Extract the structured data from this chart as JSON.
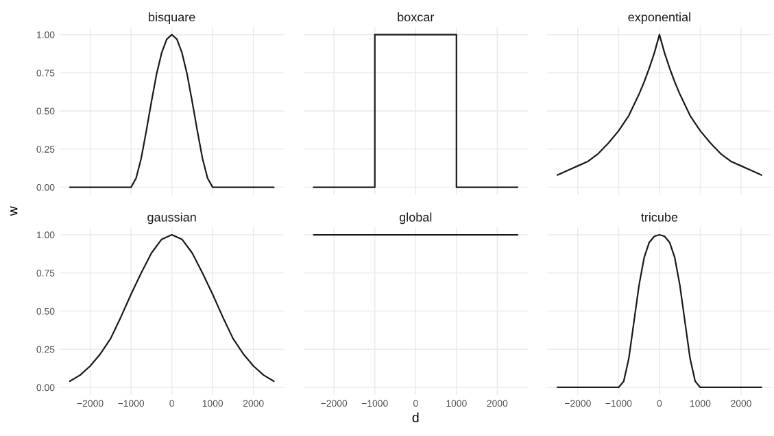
{
  "chart_data": [
    {
      "type": "line",
      "title": "bisquare",
      "ylabel": "w",
      "color": "#1a1a1a",
      "tick_labels": "y",
      "grid": true,
      "xlim": [
        -2750,
        2750
      ],
      "ylim": [
        -0.05,
        1.05
      ],
      "xticks": [
        {
          "value": -2000,
          "label": null
        },
        {
          "value": -1000,
          "label": null
        },
        {
          "value": 0,
          "label": null
        },
        {
          "value": 1000,
          "label": null
        },
        {
          "value": 2000,
          "label": null
        }
      ],
      "yticks": [
        {
          "value": 0,
          "label": "0.00"
        },
        {
          "value": 0.25,
          "label": "0.25"
        },
        {
          "value": 0.5,
          "label": "0.50"
        },
        {
          "value": 0.75,
          "label": "0.75"
        },
        {
          "value": 1,
          "label": "1.00"
        }
      ],
      "x": [
        -2500,
        -1000,
        -875,
        -750,
        -625,
        -500,
        -375,
        -250,
        -125,
        0,
        125,
        250,
        375,
        500,
        625,
        750,
        875,
        1000,
        2500
      ],
      "values": [
        0,
        0,
        0.06,
        0.19,
        0.37,
        0.56,
        0.74,
        0.88,
        0.97,
        1,
        0.97,
        0.88,
        0.74,
        0.56,
        0.37,
        0.19,
        0.06,
        0,
        0
      ]
    },
    {
      "type": "line",
      "title": "boxcar",
      "color": "#1a1a1a",
      "tick_labels": false,
      "grid": true,
      "xlim": [
        -2750,
        2750
      ],
      "ylim": [
        -0.05,
        1.05
      ],
      "xticks": [
        {
          "value": -2000,
          "label": null
        },
        {
          "value": -1000,
          "label": null
        },
        {
          "value": 0,
          "label": null
        },
        {
          "value": 1000,
          "label": null
        },
        {
          "value": 2000,
          "label": null
        }
      ],
      "yticks": [
        {
          "value": 0,
          "label": null
        },
        {
          "value": 0.25,
          "label": null
        },
        {
          "value": 0.5,
          "label": null
        },
        {
          "value": 0.75,
          "label": null
        },
        {
          "value": 1,
          "label": null
        }
      ],
      "x": [
        -2500,
        -1000,
        -1000,
        1000,
        1000,
        2500
      ],
      "values": [
        0,
        0,
        1,
        1,
        0,
        0
      ]
    },
    {
      "type": "line",
      "title": "exponential",
      "color": "#1a1a1a",
      "tick_labels": false,
      "grid": true,
      "xlim": [
        -2750,
        2750
      ],
      "ylim": [
        -0.05,
        1.05
      ],
      "xticks": [
        {
          "value": -2000,
          "label": null
        },
        {
          "value": -1000,
          "label": null
        },
        {
          "value": 0,
          "label": null
        },
        {
          "value": 1000,
          "label": null
        },
        {
          "value": 2000,
          "label": null
        }
      ],
      "yticks": [
        {
          "value": 0,
          "label": null
        },
        {
          "value": 0.25,
          "label": null
        },
        {
          "value": 0.5,
          "label": null
        },
        {
          "value": 0.75,
          "label": null
        },
        {
          "value": 1,
          "label": null
        }
      ],
      "x": [
        -2500,
        -2250,
        -2000,
        -1750,
        -1500,
        -1250,
        -1000,
        -750,
        -500,
        -375,
        -250,
        -125,
        0,
        125,
        250,
        375,
        500,
        750,
        1000,
        1250,
        1500,
        1750,
        2000,
        2250,
        2500
      ],
      "values": [
        0.08,
        0.11,
        0.14,
        0.17,
        0.22,
        0.29,
        0.37,
        0.47,
        0.61,
        0.69,
        0.78,
        0.88,
        1,
        0.88,
        0.78,
        0.69,
        0.61,
        0.47,
        0.37,
        0.29,
        0.22,
        0.17,
        0.14,
        0.11,
        0.08
      ]
    },
    {
      "type": "line",
      "title": "gaussian",
      "color": "#1a1a1a",
      "grid": true,
      "xlim": [
        -2750,
        2750
      ],
      "ylim": [
        -0.05,
        1.05
      ],
      "xticks": [
        {
          "value": -2000,
          "label": "−2000"
        },
        {
          "value": -1000,
          "label": "−1000"
        },
        0,
        1000,
        2000
      ],
      "yticks": [
        {
          "value": 0,
          "label": "0.00"
        },
        {
          "value": 0.25,
          "label": "0.25"
        },
        {
          "value": 0.5,
          "label": "0.50"
        },
        {
          "value": 0.75,
          "label": "0.75"
        },
        {
          "value": 1,
          "label": "1.00"
        }
      ],
      "x": [
        -2500,
        -2250,
        -2000,
        -1750,
        -1500,
        -1250,
        -1000,
        -750,
        -500,
        -250,
        0,
        250,
        500,
        750,
        1000,
        1250,
        1500,
        1750,
        2000,
        2250,
        2500
      ],
      "values": [
        0.04,
        0.08,
        0.14,
        0.22,
        0.32,
        0.46,
        0.61,
        0.75,
        0.88,
        0.97,
        1,
        0.97,
        0.88,
        0.75,
        0.61,
        0.46,
        0.32,
        0.22,
        0.14,
        0.08,
        0.04
      ]
    },
    {
      "type": "line",
      "title": "global",
      "xlabel": "d",
      "color": "#1a1a1a",
      "tick_labels": "x",
      "grid": true,
      "xlim": [
        -2750,
        2750
      ],
      "ylim": [
        -0.05,
        1.05
      ],
      "xticks": [
        {
          "value": -2000,
          "label": "−2000"
        },
        {
          "value": -1000,
          "label": "−1000"
        },
        0,
        1000,
        2000
      ],
      "yticks": [
        {
          "value": 0,
          "label": null
        },
        {
          "value": 0.25,
          "label": null
        },
        {
          "value": 0.5,
          "label": null
        },
        {
          "value": 0.75,
          "label": null
        },
        {
          "value": 1,
          "label": null
        }
      ],
      "x": [
        -2500,
        2500
      ],
      "values": [
        1,
        1
      ]
    },
    {
      "type": "line",
      "title": "tricube",
      "color": "#1a1a1a",
      "tick_labels": "x",
      "grid": true,
      "xlim": [
        -2750,
        2750
      ],
      "ylim": [
        -0.05,
        1.05
      ],
      "xticks": [
        {
          "value": -2000,
          "label": "−2000"
        },
        {
          "value": -1000,
          "label": "−1000"
        },
        0,
        1000,
        2000
      ],
      "yticks": [
        {
          "value": 0,
          "label": null
        },
        {
          "value": 0.25,
          "label": null
        },
        {
          "value": 0.5,
          "label": null
        },
        {
          "value": 0.75,
          "label": null
        },
        {
          "value": 1,
          "label": null
        }
      ],
      "x": [
        -2500,
        -1000,
        -875,
        -750,
        -625,
        -500,
        -375,
        -250,
        -125,
        0,
        125,
        250,
        375,
        500,
        625,
        750,
        875,
        1000,
        2500
      ],
      "values": [
        0,
        0,
        0.04,
        0.19,
        0.43,
        0.67,
        0.85,
        0.95,
        0.99,
        1,
        0.99,
        0.95,
        0.85,
        0.67,
        0.43,
        0.19,
        0.04,
        0,
        0
      ]
    }
  ]
}
